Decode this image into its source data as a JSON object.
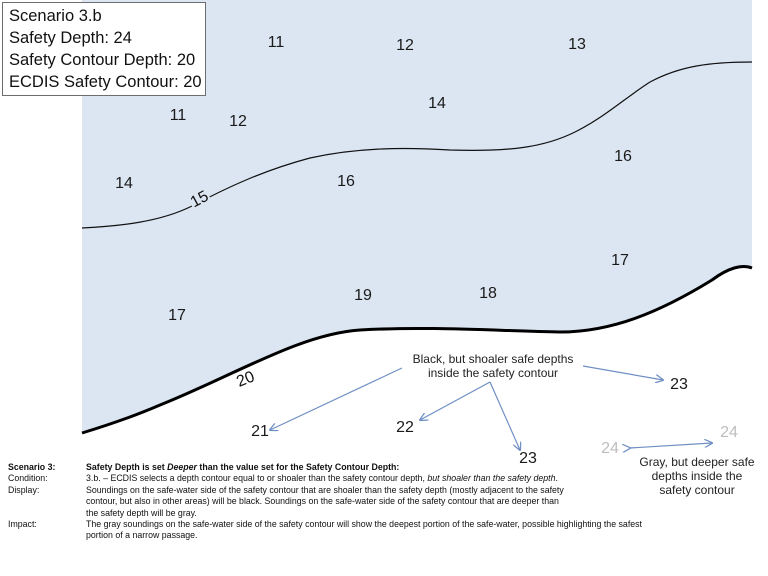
{
  "scenario_box": {
    "line1": "Scenario 3.b",
    "line2": "Safety Depth: 24",
    "line3": "Safety Contour Depth: 20",
    "line4": "ECDIS Safety Contour: 20"
  },
  "colors": {
    "shallow_fill": "#dce6f2",
    "deep_fill": "#ffffff",
    "contour": "#111111",
    "arrow": "#6f8fc3",
    "gray_sounding": "#bdbdbd"
  },
  "contours": {
    "c15": "15",
    "c20": "20"
  },
  "soundings": {
    "s11a": "11",
    "s12a": "12",
    "s13": "13",
    "s14a": "14",
    "s11b": "11",
    "s12b": "12",
    "s16a": "16",
    "s14b": "14",
    "s15": "15",
    "s16b": "16",
    "s17a": "17",
    "s19": "19",
    "s18": "18",
    "s17b": "17",
    "s21": "21",
    "s22": "22",
    "s23a": "23",
    "s23b": "23",
    "s24a": "24",
    "s24b": "24"
  },
  "notes": {
    "black_note_line1": "Black, but shoaler safe depths",
    "black_note_line2": "inside the safety contour",
    "gray_note_line1": "Gray, but deeper safe",
    "gray_note_line2": "depths inside the",
    "gray_note_line3": "safety contour"
  },
  "caption": {
    "scenario_key": "Scenario 3:",
    "scenario_pre": "Safety Depth is set ",
    "scenario_emph": "Deeper",
    "scenario_post": "  than the value set for the Safety Contour Depth:",
    "condition_key": "Condition:",
    "condition_pre": "3.b. – ECDIS selects a depth contour equal to or shoaler than the safety contour depth, ",
    "condition_emph": "but shoaler than the safety depth",
    "condition_post": ".",
    "display_key": "Display:",
    "display_line1": "Soundings on the safe-water side of the safety contour that are shoaler than the safety depth (mostly adjacent to the safety",
    "display_line2": "contour, but also in other areas) will be black. Soundings on the safe-water side of the safety contour that are deeper than",
    "display_line3": "the safety depth will be gray.",
    "impact_key": "Impact:",
    "impact_line1": "The gray soundings on the safe-water side of the safety contour will show the deepest portion of the safe-water, possible highlighting the safest",
    "impact_line2": "portion of a narrow passage."
  }
}
